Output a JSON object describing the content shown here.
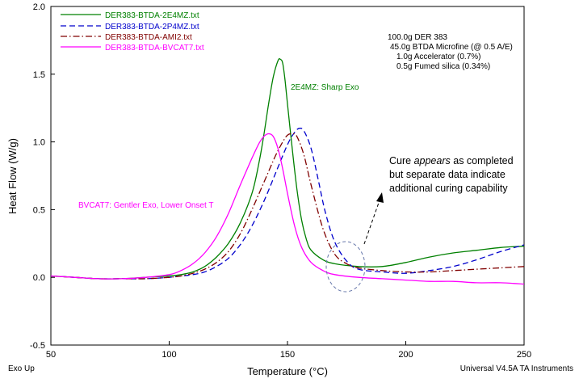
{
  "chart_data": {
    "type": "line",
    "title": "",
    "xlabel": "Temperature (°C)",
    "ylabel": "Heat Flow (W/g)",
    "xlim": [
      50,
      250
    ],
    "ylim": [
      -0.5,
      2.0
    ],
    "xticks": [
      50,
      100,
      150,
      200,
      250
    ],
    "yticks": [
      -0.5,
      0.0,
      0.5,
      1.0,
      1.5,
      2.0
    ],
    "ytick_labels": [
      "-0.5",
      "0.0",
      "0.5",
      "1.0",
      "1.5",
      "2.0"
    ],
    "xtick_labels": [
      "50",
      "100",
      "150",
      "200",
      "250"
    ],
    "legend_position": "top-left",
    "series": [
      {
        "name": "DER383-BTDA-2E4MZ.txt",
        "color": "#008000",
        "dash": "solid",
        "x": [
          50,
          60,
          70,
          80,
          90,
          100,
          105,
          110,
          115,
          120,
          125,
          130,
          135,
          138,
          140,
          142,
          144,
          146,
          147,
          148,
          149,
          150,
          152,
          154,
          156,
          158,
          160,
          165,
          170,
          180,
          190,
          200,
          210,
          220,
          230,
          240,
          250
        ],
        "y": [
          0.01,
          0.0,
          -0.01,
          -0.01,
          0.0,
          0.01,
          0.02,
          0.04,
          0.08,
          0.15,
          0.25,
          0.4,
          0.62,
          0.85,
          1.05,
          1.28,
          1.48,
          1.6,
          1.61,
          1.58,
          1.45,
          1.28,
          0.95,
          0.65,
          0.42,
          0.28,
          0.2,
          0.13,
          0.1,
          0.08,
          0.08,
          0.11,
          0.15,
          0.18,
          0.2,
          0.22,
          0.23
        ]
      },
      {
        "name": "DER383-BTDA-2P4MZ.txt",
        "color": "#0000cc",
        "dash": "dashed",
        "x": [
          50,
          60,
          70,
          80,
          90,
          100,
          105,
          110,
          115,
          120,
          125,
          130,
          135,
          140,
          145,
          150,
          153,
          155,
          157,
          160,
          163,
          166,
          170,
          175,
          180,
          190,
          200,
          210,
          220,
          230,
          240,
          250
        ],
        "y": [
          0.01,
          0.0,
          -0.01,
          -0.01,
          -0.01,
          0.0,
          0.01,
          0.02,
          0.04,
          0.08,
          0.14,
          0.24,
          0.38,
          0.56,
          0.77,
          0.98,
          1.07,
          1.1,
          1.08,
          0.95,
          0.72,
          0.48,
          0.26,
          0.12,
          0.06,
          0.04,
          0.03,
          0.05,
          0.08,
          0.13,
          0.19,
          0.24
        ]
      },
      {
        "name": "DER383-BTDA-AMI2.txt",
        "color": "#800000",
        "dash": "dashdot",
        "x": [
          50,
          60,
          70,
          80,
          90,
          100,
          105,
          110,
          115,
          120,
          125,
          130,
          135,
          140,
          145,
          148,
          150,
          152,
          154,
          157,
          160,
          165,
          170,
          175,
          180,
          190,
          200,
          210,
          220,
          230,
          240,
          250
        ],
        "y": [
          0.01,
          0.0,
          -0.01,
          -0.01,
          -0.01,
          0.0,
          0.01,
          0.03,
          0.06,
          0.11,
          0.19,
          0.32,
          0.5,
          0.7,
          0.9,
          1.0,
          1.05,
          1.06,
          1.04,
          0.9,
          0.68,
          0.36,
          0.17,
          0.1,
          0.07,
          0.05,
          0.04,
          0.04,
          0.05,
          0.06,
          0.07,
          0.08
        ]
      },
      {
        "name": "DER383-BTDA-BVCAT7.txt",
        "color": "#ff00ff",
        "dash": "solid",
        "x": [
          50,
          60,
          70,
          80,
          90,
          100,
          105,
          110,
          115,
          120,
          125,
          130,
          135,
          138,
          140,
          142,
          144,
          146,
          148,
          150,
          153,
          156,
          160,
          165,
          170,
          180,
          190,
          200,
          210,
          220,
          230,
          240,
          250
        ],
        "y": [
          0.01,
          0.0,
          -0.01,
          -0.01,
          0.0,
          0.02,
          0.05,
          0.1,
          0.18,
          0.3,
          0.47,
          0.68,
          0.88,
          0.99,
          1.04,
          1.06,
          1.04,
          0.95,
          0.8,
          0.62,
          0.38,
          0.22,
          0.11,
          0.05,
          0.02,
          0.0,
          -0.01,
          -0.02,
          -0.03,
          -0.03,
          -0.04,
          -0.04,
          -0.05
        ]
      }
    ],
    "formulation": [
      "100.0g DER 383",
      "45.0g BTDA Microfine (@ 0.5 A/E)",
      "1.0g Accelerator (0.7%)",
      "0.5g Fumed silica (0.34%)"
    ],
    "annotations": {
      "sharp_exo": "2E4MZ: Sharp Exo",
      "gentle_exo": "BVCAT7: Gentler Exo, Lower Onset T",
      "cure_note": {
        "line1_before": "Cure ",
        "line1_italic": "appears",
        "line1_after": " as completed",
        "line2": "but separate data indicate",
        "line3": "additional curing capability"
      }
    },
    "footer_left": "Exo Up",
    "footer_right": "Universal V4.5A TA Instruments"
  }
}
